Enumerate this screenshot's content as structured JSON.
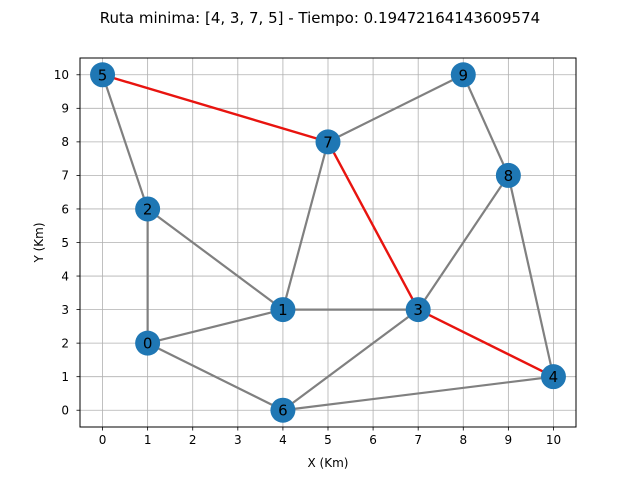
{
  "chart_data": {
    "type": "scatter",
    "title": "Ruta minima: [4, 3, 7, 5] - Tiempo: 0.19472164143609574",
    "xlabel": "X (Km)",
    "ylabel": "Y (Km)",
    "xlim": [
      -0.5,
      10.5
    ],
    "ylim": [
      -0.5,
      10.5
    ],
    "grid": true,
    "xticks": [
      0,
      1,
      2,
      3,
      4,
      5,
      6,
      7,
      8,
      9,
      10
    ],
    "xtick_labels": [
      "0",
      "1",
      "2",
      "3",
      "4",
      "5",
      "6",
      "7",
      "8",
      "9",
      "10"
    ],
    "yticks": [
      0,
      1,
      2,
      3,
      4,
      5,
      6,
      7,
      8,
      9,
      10
    ],
    "ytick_labels": [
      "0",
      "1",
      "2",
      "3",
      "4",
      "5",
      "6",
      "7",
      "8",
      "9",
      "10"
    ],
    "nodes": [
      {
        "label": "0",
        "x": 1,
        "y": 2
      },
      {
        "label": "1",
        "x": 4,
        "y": 3
      },
      {
        "label": "2",
        "x": 1,
        "y": 6
      },
      {
        "label": "3",
        "x": 7,
        "y": 3
      },
      {
        "label": "4",
        "x": 10,
        "y": 1
      },
      {
        "label": "5",
        "x": 0,
        "y": 10
      },
      {
        "label": "6",
        "x": 4,
        "y": 0
      },
      {
        "label": "7",
        "x": 5,
        "y": 8
      },
      {
        "label": "8",
        "x": 9,
        "y": 7
      },
      {
        "label": "9",
        "x": 8,
        "y": 10
      }
    ],
    "edges": [
      [
        "0",
        "2"
      ],
      [
        "0",
        "1"
      ],
      [
        "0",
        "6"
      ],
      [
        "1",
        "2"
      ],
      [
        "1",
        "3"
      ],
      [
        "1",
        "7"
      ],
      [
        "2",
        "5"
      ],
      [
        "3",
        "6"
      ],
      [
        "3",
        "8"
      ],
      [
        "4",
        "6"
      ],
      [
        "4",
        "8"
      ],
      [
        "7",
        "9"
      ],
      [
        "8",
        "9"
      ]
    ],
    "path_edges": [
      [
        "5",
        "7"
      ],
      [
        "7",
        "3"
      ],
      [
        "3",
        "4"
      ]
    ],
    "colors": {
      "node": "#1f77b4",
      "edge": "#808080",
      "path": "#e8140f",
      "grid": "#b0b0b0"
    }
  }
}
